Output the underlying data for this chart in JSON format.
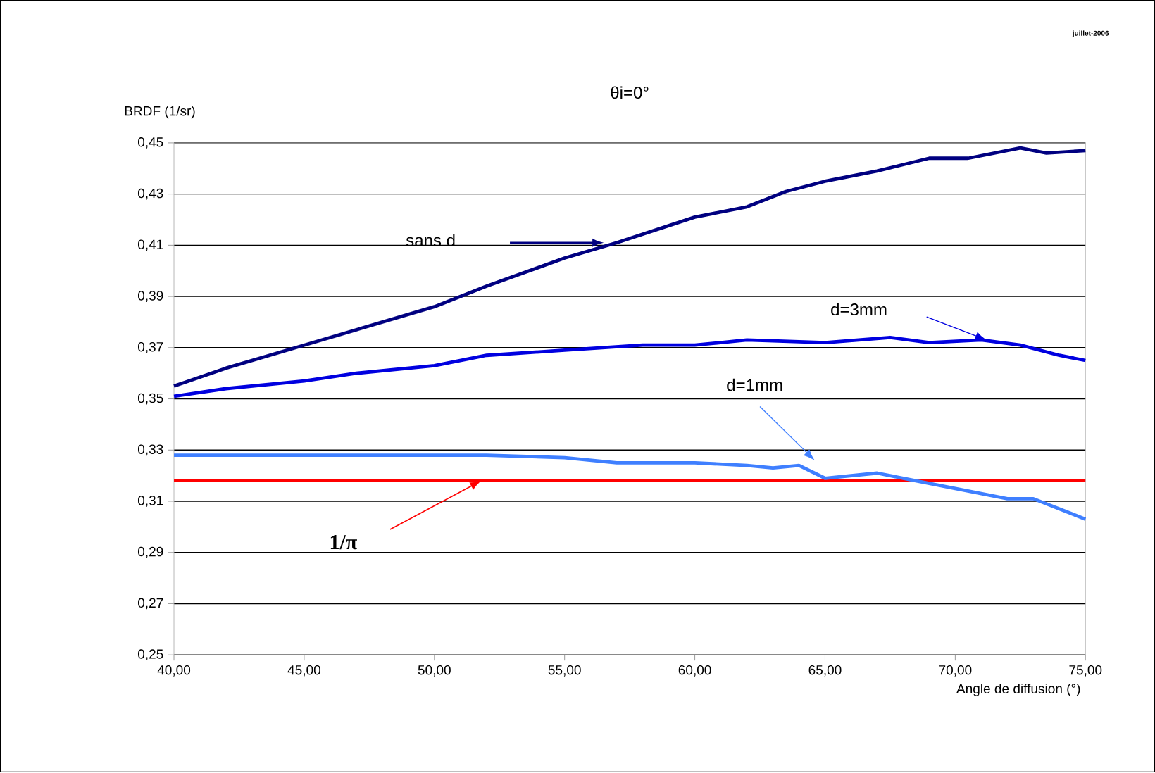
{
  "chart_data": {
    "type": "line",
    "title": "θi=0°",
    "ylabel": "BRDF (1/sr)",
    "xlabel": "Angle de diffusion (°)",
    "annotations": [
      "juillet-2006"
    ],
    "xlim": [
      40,
      75
    ],
    "ylim": [
      0.25,
      0.45
    ],
    "xticks": [
      {
        "value": 40,
        "label": "40,00"
      },
      {
        "value": 45,
        "label": "45,00"
      },
      {
        "value": 50,
        "label": "50,00"
      },
      {
        "value": 55,
        "label": "55,00"
      },
      {
        "value": 60,
        "label": "60,00"
      },
      {
        "value": 65,
        "label": "65,00"
      },
      {
        "value": 70,
        "label": "70,00"
      },
      {
        "value": 75,
        "label": "75,00"
      }
    ],
    "yticks": [
      {
        "value": 0.25,
        "label": "0,25"
      },
      {
        "value": 0.27,
        "label": "0,27"
      },
      {
        "value": 0.29,
        "label": "0,29"
      },
      {
        "value": 0.31,
        "label": "0,31"
      },
      {
        "value": 0.33,
        "label": "0,33"
      },
      {
        "value": 0.35,
        "label": "0,35"
      },
      {
        "value": 0.37,
        "label": "0,37"
      },
      {
        "value": 0.39,
        "label": "0,39"
      },
      {
        "value": 0.41,
        "label": "0,41"
      },
      {
        "value": 0.43,
        "label": "0,43"
      },
      {
        "value": 0.45,
        "label": "0,45"
      }
    ],
    "grid": "y",
    "legend": false,
    "marker": "none",
    "line_style": "solid",
    "ref_lines": [
      {
        "axis": "y",
        "value": 0.318,
        "label": "1/π",
        "color": "#ff0000"
      }
    ],
    "series": [
      {
        "name": "sans d",
        "color": "#000080",
        "x": [
          40,
          42,
          45,
          50,
          52,
          55,
          57,
          60,
          62,
          63.5,
          65,
          67,
          69,
          70.5,
          72.5,
          73.5,
          75
        ],
        "values": [
          0.355,
          0.362,
          0.371,
          0.386,
          0.394,
          0.405,
          0.411,
          0.421,
          0.425,
          0.431,
          0.435,
          0.439,
          0.444,
          0.444,
          0.448,
          0.446,
          0.447
        ]
      },
      {
        "name": "d=3mm",
        "color": "#0000e0",
        "x": [
          40,
          42,
          45,
          47,
          50,
          52,
          55,
          58,
          60,
          62,
          65,
          67.5,
          69,
          71,
          72.5,
          74,
          75
        ],
        "values": [
          0.351,
          0.354,
          0.357,
          0.36,
          0.363,
          0.367,
          0.369,
          0.371,
          0.371,
          0.373,
          0.372,
          0.374,
          0.372,
          0.373,
          0.371,
          0.367,
          0.365
        ]
      },
      {
        "name": "d=1mm",
        "color": "#3f7fff",
        "x": [
          40,
          45,
          50,
          52,
          55,
          57,
          60,
          62,
          63,
          64,
          65,
          67,
          68,
          70,
          72,
          73,
          75
        ],
        "values": [
          0.328,
          0.328,
          0.328,
          0.328,
          0.327,
          0.325,
          0.325,
          0.324,
          0.323,
          0.324,
          0.319,
          0.321,
          0.319,
          0.315,
          0.311,
          0.311,
          0.303
        ]
      }
    ]
  }
}
